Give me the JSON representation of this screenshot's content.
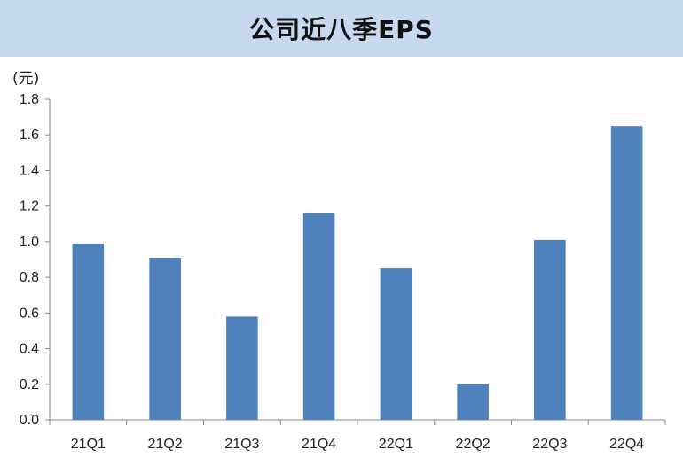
{
  "title": "公司近八季EPS",
  "chart_data": {
    "type": "bar",
    "title": "公司近八季EPS",
    "unit_label": "(元)",
    "categories": [
      "21Q1",
      "21Q2",
      "21Q3",
      "21Q4",
      "22Q1",
      "22Q2",
      "22Q3",
      "22Q4"
    ],
    "values": [
      0.99,
      0.91,
      0.58,
      1.16,
      0.85,
      0.2,
      1.01,
      1.65
    ],
    "ylim": [
      0,
      1.8
    ],
    "yticks": [
      "0.0",
      "0.2",
      "0.4",
      "0.6",
      "0.8",
      "1.0",
      "1.2",
      "1.4",
      "1.6",
      "1.8"
    ],
    "grid": false,
    "bar_color": "#4f81bd"
  }
}
